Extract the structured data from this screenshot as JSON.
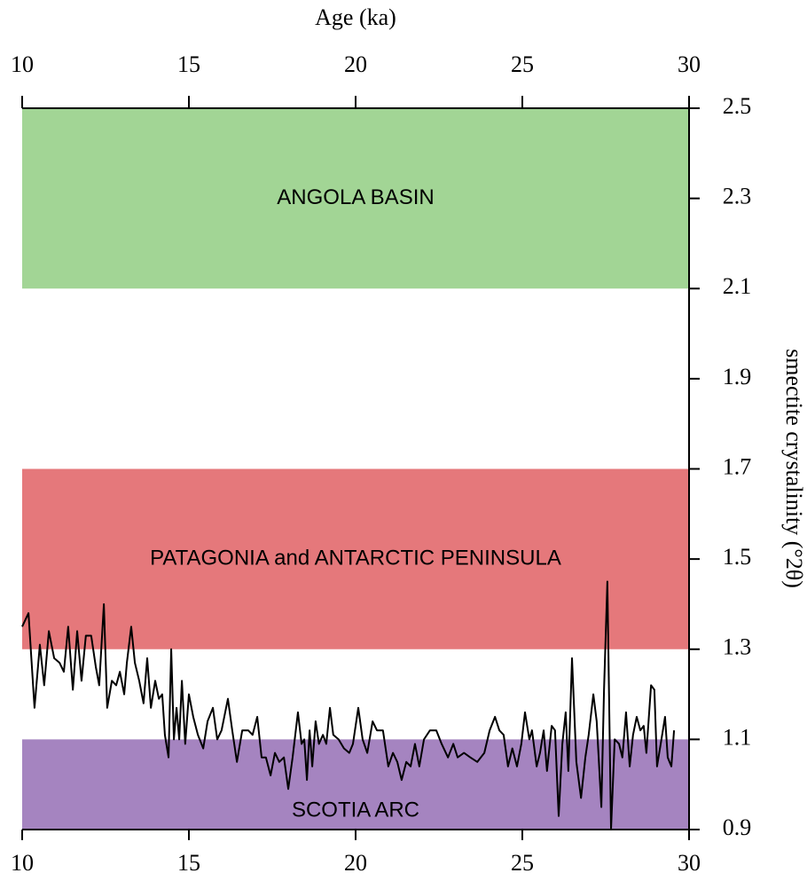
{
  "chart_data": {
    "type": "line",
    "xlabel": "Age (ka)",
    "ylabel": "smectite crystalinity (°2θ)",
    "xlim": [
      10,
      30
    ],
    "xticks": [
      10,
      15,
      20,
      25,
      30
    ],
    "ylim": [
      0.9,
      2.5
    ],
    "yticks": [
      0.9,
      1.1,
      1.3,
      1.5,
      1.7,
      1.9,
      2.1,
      2.3,
      2.5
    ],
    "yaxis_side": "right",
    "bands": [
      {
        "label": "ANGOLA BASIN",
        "from": 2.1,
        "to": 2.5,
        "color": "#a2d595"
      },
      {
        "label": "PATAGONIA and ANTARCTIC PENINSULA",
        "from": 1.3,
        "to": 1.7,
        "color": "#e5787b"
      },
      {
        "label": "SCOTIA ARC",
        "from": 0.9,
        "to": 1.1,
        "color": "#a584c0"
      }
    ],
    "x": [
      10.0,
      10.19,
      10.37,
      10.53,
      10.66,
      10.8,
      10.96,
      11.12,
      11.25,
      11.38,
      11.52,
      11.65,
      11.78,
      11.91,
      12.07,
      12.21,
      12.31,
      12.45,
      12.55,
      12.69,
      12.82,
      12.93,
      13.06,
      13.14,
      13.27,
      13.38,
      13.51,
      13.64,
      13.75,
      13.86,
      13.99,
      14.1,
      14.2,
      14.28,
      14.39,
      14.47,
      14.55,
      14.63,
      14.71,
      14.79,
      14.89,
      15.0,
      15.13,
      15.27,
      15.43,
      15.56,
      15.72,
      15.85,
      15.98,
      16.17,
      16.3,
      16.44,
      16.6,
      16.78,
      16.91,
      17.05,
      17.18,
      17.31,
      17.45,
      17.58,
      17.71,
      17.85,
      17.98,
      18.11,
      18.27,
      18.38,
      18.46,
      18.54,
      18.62,
      18.7,
      18.8,
      18.9,
      19.02,
      19.12,
      19.23,
      19.33,
      19.49,
      19.65,
      19.81,
      19.92,
      20.08,
      20.21,
      20.35,
      20.51,
      20.64,
      20.82,
      20.98,
      21.12,
      21.25,
      21.38,
      21.52,
      21.65,
      21.78,
      21.91,
      22.05,
      22.23,
      22.42,
      22.58,
      22.77,
      22.93,
      23.06,
      23.25,
      23.44,
      23.65,
      23.86,
      24.02,
      24.18,
      24.31,
      24.44,
      24.57,
      24.7,
      24.84,
      24.97,
      25.08,
      25.21,
      25.29,
      25.43,
      25.53,
      25.64,
      25.74,
      25.88,
      25.98,
      26.09,
      26.2,
      26.3,
      26.38,
      26.49,
      26.62,
      26.76,
      26.89,
      26.99,
      27.13,
      27.23,
      27.37,
      27.45,
      27.55,
      27.66,
      27.77,
      27.9,
      28.0,
      28.11,
      28.22,
      28.32,
      28.43,
      28.54,
      28.64,
      28.72,
      28.86,
      28.96,
      29.04,
      29.15,
      29.28,
      29.36,
      29.47,
      29.55
    ],
    "series": [
      {
        "color": "#000000",
        "values": [
          1.35,
          1.38,
          1.17,
          1.31,
          1.22,
          1.34,
          1.28,
          1.27,
          1.25,
          1.35,
          1.21,
          1.34,
          1.23,
          1.33,
          1.33,
          1.26,
          1.22,
          1.4,
          1.17,
          1.23,
          1.22,
          1.25,
          1.2,
          1.27,
          1.35,
          1.27,
          1.23,
          1.18,
          1.28,
          1.17,
          1.23,
          1.19,
          1.2,
          1.11,
          1.06,
          1.3,
          1.1,
          1.17,
          1.1,
          1.23,
          1.09,
          1.2,
          1.15,
          1.11,
          1.08,
          1.14,
          1.17,
          1.1,
          1.12,
          1.19,
          1.12,
          1.05,
          1.12,
          1.12,
          1.11,
          1.15,
          1.06,
          1.06,
          1.02,
          1.07,
          1.05,
          1.06,
          0.99,
          1.06,
          1.16,
          1.09,
          1.1,
          1.01,
          1.12,
          1.04,
          1.14,
          1.09,
          1.11,
          1.09,
          1.17,
          1.11,
          1.1,
          1.08,
          1.07,
          1.09,
          1.17,
          1.1,
          1.07,
          1.14,
          1.12,
          1.12,
          1.04,
          1.07,
          1.05,
          1.01,
          1.05,
          1.04,
          1.09,
          1.04,
          1.1,
          1.12,
          1.12,
          1.09,
          1.06,
          1.09,
          1.06,
          1.07,
          1.06,
          1.05,
          1.07,
          1.12,
          1.15,
          1.12,
          1.11,
          1.04,
          1.08,
          1.04,
          1.09,
          1.16,
          1.1,
          1.12,
          1.04,
          1.07,
          1.12,
          1.03,
          1.13,
          1.12,
          0.93,
          1.09,
          1.16,
          1.03,
          1.28,
          1.05,
          0.97,
          1.06,
          1.11,
          1.2,
          1.14,
          0.95,
          1.21,
          1.45,
          0.9,
          1.1,
          1.09,
          1.06,
          1.16,
          1.04,
          1.11,
          1.15,
          1.12,
          1.13,
          1.07,
          1.22,
          1.21,
          1.04,
          1.09,
          1.15,
          1.06,
          1.04,
          1.12
        ]
      }
    ]
  }
}
